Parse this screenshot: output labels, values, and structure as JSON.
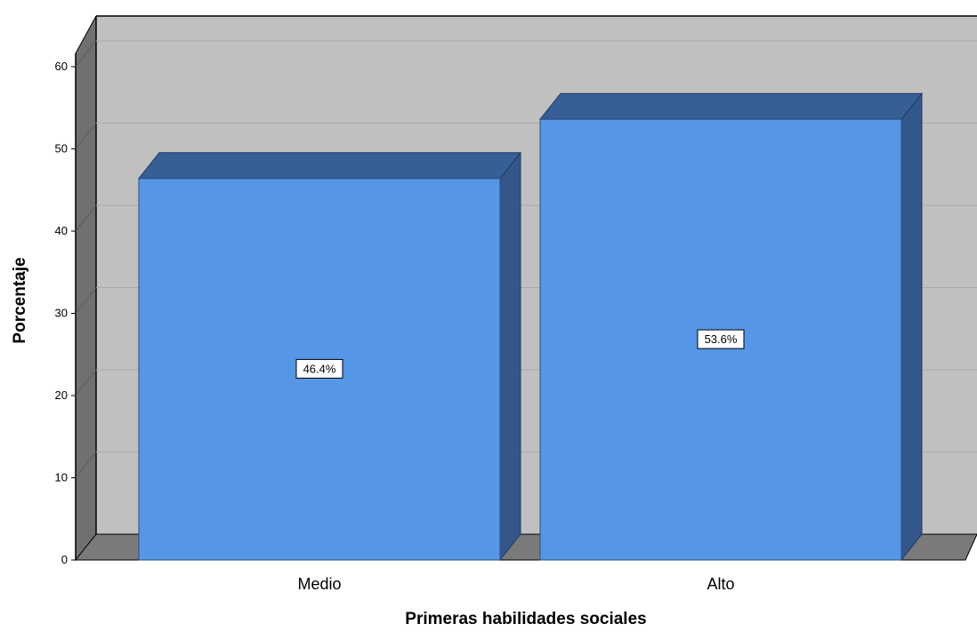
{
  "chart_data": {
    "type": "bar",
    "categories": [
      "Medio",
      "Alto"
    ],
    "values": [
      46.4,
      53.6
    ],
    "data_labels": [
      "46.4%",
      "53.6%"
    ],
    "xlabel": "Primeras habilidades sociales",
    "ylabel": "Porcentaje",
    "ylim": [
      0,
      60
    ],
    "yticks": [
      0,
      10,
      20,
      30,
      40,
      50,
      60
    ],
    "grid": true,
    "style": "3d",
    "colors": {
      "bar_front": "#5596e6",
      "bar_top": "#365f95",
      "bar_side": "#34568a",
      "back_wall": "#c0c0c0",
      "side_wall": "#707070",
      "floor": "#7a7a7a",
      "gridline": "#a9a9a9"
    }
  }
}
